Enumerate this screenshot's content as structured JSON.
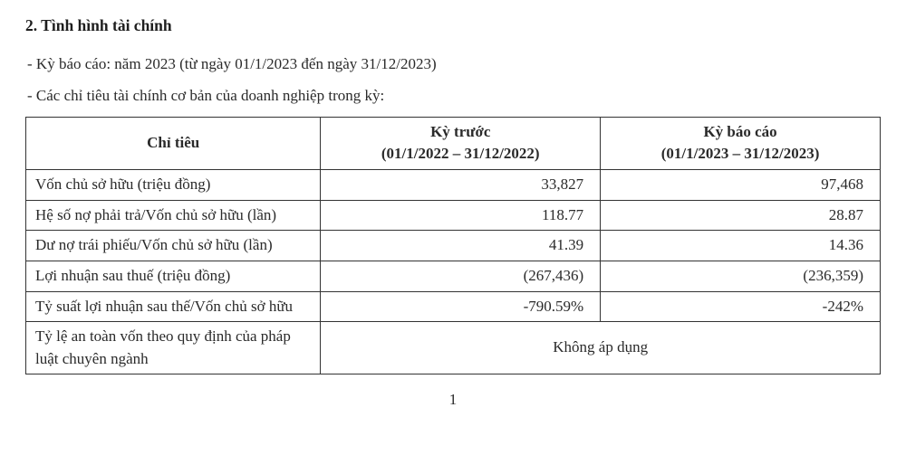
{
  "heading": "2. Tình hình tài chính",
  "line1": "- Kỳ báo cáo: năm 2023 (từ ngày 01/1/2023 đến ngày 31/12/2023)",
  "line2": "- Các chỉ tiêu tài chính cơ bản của doanh nghiệp trong kỳ:",
  "table": {
    "columns": {
      "c1": "Chỉ tiêu",
      "c2_top": "Kỳ trước",
      "c2_sub": "(01/1/2022 – 31/12/2022)",
      "c3_top": "Kỳ báo cáo",
      "c3_sub": "(01/1/2023 – 31/12/2023)"
    },
    "rows": [
      {
        "label": "Vốn chủ sở hữu (triệu đồng)",
        "prev": "33,827",
        "curr": "97,468"
      },
      {
        "label": "Hệ số nợ phải trả/Vốn chủ sở hữu (lần)",
        "prev": "118.77",
        "curr": "28.87"
      },
      {
        "label": "Dư nợ trái phiếu/Vốn chủ sở hữu (lần)",
        "prev": "41.39",
        "curr": "14.36"
      },
      {
        "label": "Lợi nhuận sau thuế (triệu đồng)",
        "prev": "(267,436)",
        "curr": "(236,359)"
      },
      {
        "label": "Tỷ suất lợi nhuận sau thế/Vốn chủ sở hữu",
        "prev": "-790.59%",
        "curr": "-242%"
      }
    ],
    "last_row": {
      "label": "Tỷ lệ an toàn vốn theo quy định của pháp luật chuyên ngành",
      "merged_value": "Không áp dụng"
    }
  },
  "page_number": "1",
  "style": {
    "background_color": "#ffffff",
    "text_color": "#2a2a2a",
    "border_color": "#333333",
    "font_family": "Times New Roman",
    "base_font_size_pt": 13
  }
}
